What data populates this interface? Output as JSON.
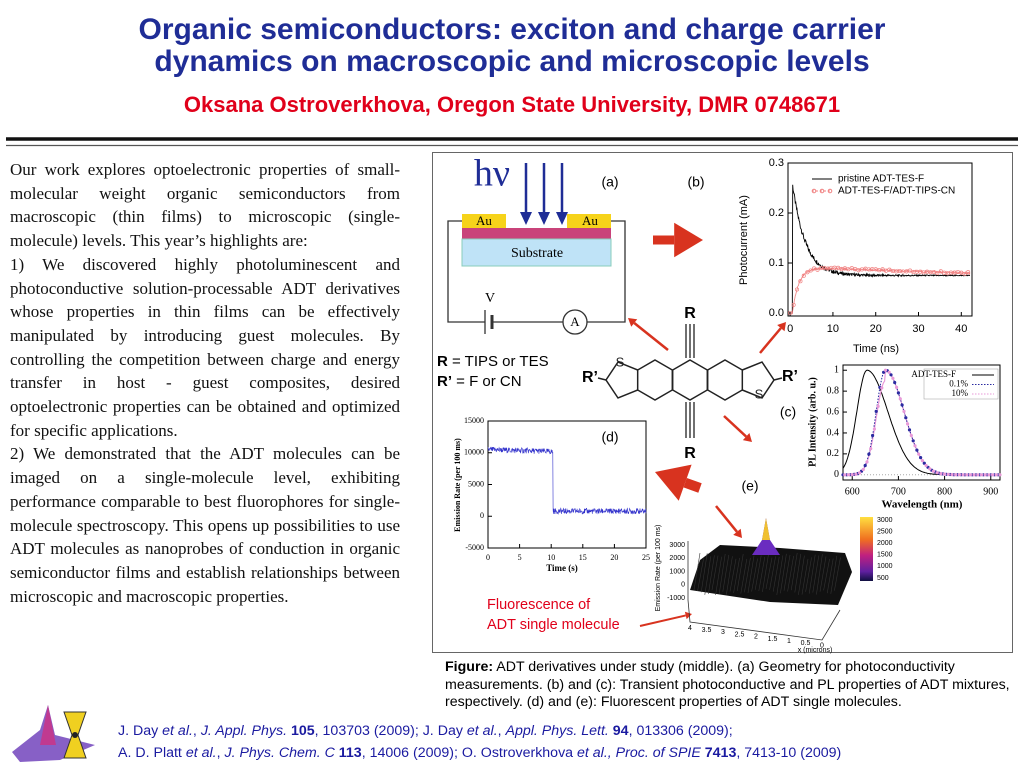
{
  "header": {
    "title_lines": [
      "Organic semiconductors: exciton and charge carrier",
      "dynamics on macroscopic and microscopic levels"
    ],
    "subtitle": "Oksana Ostroverkhova, Oregon State University, DMR 0748671"
  },
  "body": {
    "paragraphs": [
      "Our work explores optoelectronic properties of small-molecular weight organic semiconductors from macroscopic (thin films) to microscopic (single-molecule) levels. This year’s highlights are:",
      "1) We discovered highly photoluminescent and photoconductive solution-processable ADT derivatives whose properties in thin films can be effectively manipulated by introducing guest molecules. By controlling the competition between charge and energy transfer in host - guest composites, desired optoelectronic properties can be obtained and optimized for specific applications.",
      "2) We demonstrated that the ADT molecules can be imaged on a single-molecule level, exhibiting performance comparable to best fluorophores for single-molecule spectroscopy. This opens up possibilities to use ADT molecules as nanoprobes of conduction in organic semiconductor films and establish relationships between microscopic and macroscopic properties."
    ]
  },
  "figure": {
    "panel_a": {
      "label": "(a)",
      "photon": "hν",
      "electrode_left": "Au",
      "electrode_right": "Au",
      "substrate": "Substrate",
      "voltage": "V",
      "ammeter": "A"
    },
    "panel_b": {
      "label": "(b)",
      "y_label": "Photocurrent (mA)",
      "x_label": "Time (ns)",
      "xlim": [
        -0.5,
        42.5
      ],
      "ylim": [
        -0.006,
        0.3
      ],
      "xticks": [
        0,
        10,
        20,
        30,
        40
      ],
      "yticks": [
        {
          "value": 0,
          "label": "0.0"
        },
        0.1,
        0.2,
        0.3
      ],
      "legend": [
        "pristine ADT-TES-F",
        "ADT-TES-F/ADT-TIPS-CN"
      ]
    },
    "molecule": {
      "top": "R",
      "bottom": "R",
      "left": "R’",
      "right": "R’",
      "sulfur_left": "S",
      "sulfur_right": "S",
      "definitions": [
        {
          "symbol": "R",
          "text": " = TIPS or TES"
        },
        {
          "symbol": "R’",
          "text": " = F or CN"
        }
      ]
    },
    "panel_c": {
      "label": "(c)",
      "y_label": "PL Intensity (arb. u.)",
      "x_label": "Wavelength (nm)",
      "xlim": [
        580,
        920
      ],
      "ylim": [
        -0.05,
        1.05
      ],
      "xticks": [
        600,
        700,
        800,
        900
      ],
      "yticks": [
        0,
        0.2,
        0.4,
        0.6,
        0.8,
        1
      ],
      "legend": [
        "ADT-TES-F",
        "0.1%",
        "10%"
      ]
    },
    "panel_d": {
      "label": "(d)",
      "y_label": "Emission Rate (per 100 ms)",
      "x_label": "Time (s)",
      "xlim": [
        0,
        25
      ],
      "ylim": [
        -5000,
        15000
      ],
      "xticks": [
        0,
        5,
        10,
        15,
        20,
        25
      ],
      "yticks": [
        -5000,
        0,
        5000,
        10000,
        15000
      ]
    },
    "panel_e": {
      "label": "(e)",
      "z_label": "Emission Rate (per 100 ms)",
      "z_ticks": [
        3000,
        2000,
        1000,
        0,
        -1000
      ],
      "x_label": "x (microns)",
      "x_ticks": [
        4,
        3.5,
        3,
        2.5,
        2,
        1.5,
        1,
        0.5,
        0
      ],
      "colorbar_ticks": [
        3000,
        2500,
        2000,
        1500,
        1000,
        500
      ],
      "note_lines": [
        "Fluorescence of",
        "ADT single molecule"
      ]
    }
  },
  "caption": {
    "lead": "Figure:",
    "text": " ADT derivatives under study (middle). (a) Geometry for photoconductivity measurements. (b) and (c): Transient photoconductive and PL properties of ADT mixtures, respectively. (d) and (e): Fluorescent properties of ADT single molecules."
  },
  "references": [
    [
      {
        "text": "J. Day "
      },
      {
        "text": "et al.",
        "style": "italic"
      },
      {
        "text": ", "
      },
      {
        "text": "J. Appl. Phys.",
        "style": "italic"
      },
      {
        "text": " 105",
        "style": "bold"
      },
      {
        "text": ", 103703 (2009); J. Day "
      },
      {
        "text": "et al.",
        "style": "italic"
      },
      {
        "text": ", "
      },
      {
        "text": "Appl. Phys. Lett.",
        "style": "italic"
      },
      {
        "text": " 94",
        "style": "bold"
      },
      {
        "text": ", 013306 (2009);"
      }
    ],
    [
      {
        "text": "A. D. Platt "
      },
      {
        "text": "et al.",
        "style": "italic"
      },
      {
        "text": ", "
      },
      {
        "text": "J. Phys. Chem. C",
        "style": "italic"
      },
      {
        "text": " 113",
        "style": "bold"
      },
      {
        "text": ", 14006 (2009); O. Ostroverkhova "
      },
      {
        "text": "et al.,",
        "style": "italic"
      },
      {
        "text": " "
      },
      {
        "text": "Proc. of SPIE",
        "style": "italic"
      },
      {
        "text": " 7413",
        "style": "bold"
      },
      {
        "text": ", 7413-10 (2009)"
      }
    ]
  ]
}
